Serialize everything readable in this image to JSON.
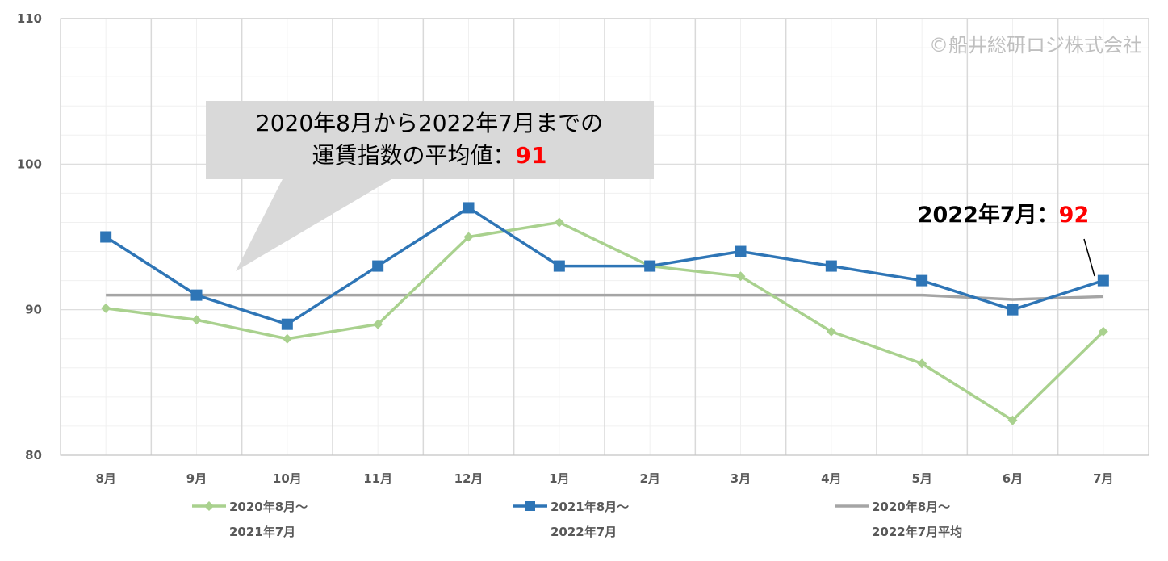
{
  "copyright": "©船井総研ロジ株式会社",
  "callout": {
    "line1": "2020年8月から2022年7月までの",
    "line2_prefix": "運賃指数の平均値：",
    "line2_value": "91"
  },
  "annotation": {
    "prefix": "2022年7月：",
    "value": "92"
  },
  "colors": {
    "series_2020": "#a9d18e",
    "series_2021": "#2e75b6",
    "series_avg": "#a5a5a5",
    "highlight": "#ff0000"
  },
  "chart_data": {
    "type": "line",
    "categories": [
      "8月",
      "9月",
      "10月",
      "11月",
      "12月",
      "1月",
      "2月",
      "3月",
      "4月",
      "5月",
      "6月",
      "7月"
    ],
    "ylim": [
      80,
      110
    ],
    "yticks": [
      "80",
      "90",
      "100",
      "110"
    ],
    "grid": true,
    "legend_position": "bottom",
    "series": [
      {
        "name_line1": "2020年8月～",
        "name_line2": "2021年7月",
        "marker": "diamond",
        "values": [
          90.1,
          89.3,
          88.0,
          89.0,
          95.0,
          96.0,
          93.0,
          92.3,
          88.5,
          86.3,
          82.4,
          88.5
        ]
      },
      {
        "name_line1": "2021年8月～",
        "name_line2": "2022年7月",
        "marker": "square",
        "values": [
          95,
          91,
          89,
          93,
          97,
          93,
          93,
          94,
          93,
          92,
          90,
          92
        ]
      },
      {
        "name_line1": "2020年8月～",
        "name_line2": "2022年7月平均",
        "marker": "none",
        "values": [
          91,
          91,
          91,
          91,
          91,
          91,
          91,
          91,
          91,
          91,
          90.7,
          90.9
        ]
      }
    ]
  }
}
